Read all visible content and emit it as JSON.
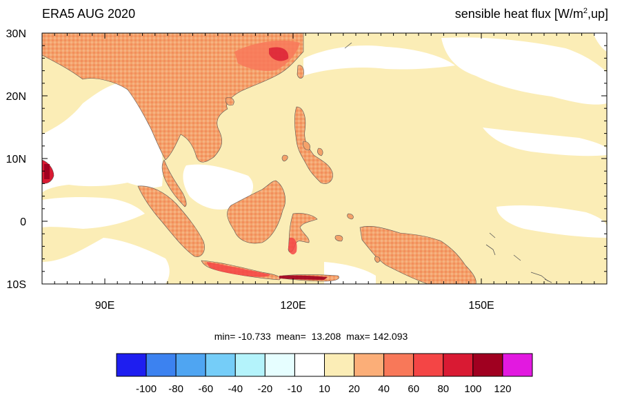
{
  "figure": {
    "left_title": "ERA5 AUG 2020",
    "right_title_main": "sensible heat flux [W/m",
    "right_title_sup": "2",
    "right_title_tail": ",up]"
  },
  "map": {
    "lon_range": [
      80,
      170
    ],
    "lat_range": [
      -10,
      30
    ],
    "lon_ticks": [
      {
        "value": 90,
        "label": "90E"
      },
      {
        "value": 120,
        "label": "120E"
      },
      {
        "value": 150,
        "label": "150E"
      }
    ],
    "lat_ticks": [
      {
        "value": 30,
        "label": "30N"
      },
      {
        "value": 20,
        "label": "20N"
      },
      {
        "value": 10,
        "label": "10N"
      },
      {
        "value": 0,
        "label": "0"
      },
      {
        "value": -10,
        "label": "10S"
      }
    ],
    "ocean_color": "#fbedb6",
    "land_color": "#f4a26a"
  },
  "stats": {
    "min_label": "min=",
    "min": "-10.733",
    "mean_label": "mean=",
    "mean": "13.208",
    "max_label": "max=",
    "max": "142.093"
  },
  "colorbar": {
    "colors": [
      "#1e1ef0",
      "#3c82f0",
      "#4fa5f2",
      "#75cdf8",
      "#b4f3fb",
      "#e6feff",
      "#ffffff",
      "#fbedb6",
      "#fbae78",
      "#f87859",
      "#f44545",
      "#d91a33",
      "#a00020",
      "#e219e0"
    ],
    "labels": [
      "-100",
      "-80",
      "-60",
      "-40",
      "-20",
      "-10",
      "10",
      "20",
      "40",
      "60",
      "80",
      "100",
      "120"
    ]
  }
}
